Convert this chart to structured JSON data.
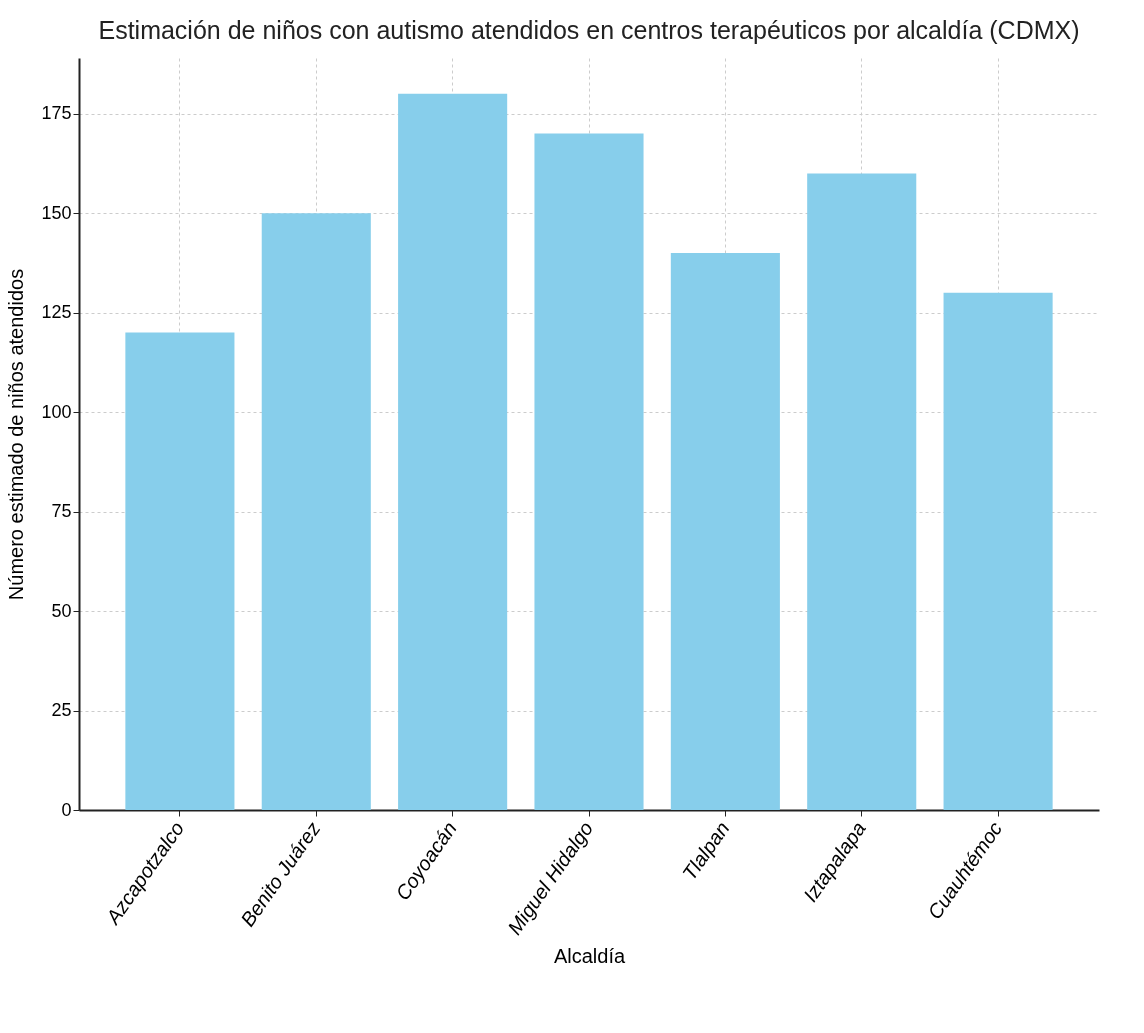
{
  "chart_data": {
    "type": "bar",
    "title": "Estimación de niños con autismo atendidos en centros terapéuticos por alcaldía (CDMX)",
    "xlabel": "Alcaldía",
    "ylabel": "Número estimado de niños atendidos",
    "categories": [
      "Azcapotzalco",
      "Benito Juárez",
      "Coyoacán",
      "Miguel Hidalgo",
      "Tlalpan",
      "Iztapalapa",
      "Cuauhtémoc"
    ],
    "values": [
      120,
      150,
      180,
      170,
      140,
      160,
      130
    ],
    "color": "#87ceeb",
    "ylim": [
      0,
      189
    ],
    "yticks": [
      0,
      25,
      50,
      75,
      100,
      125,
      150,
      175
    ],
    "grid": true
  }
}
